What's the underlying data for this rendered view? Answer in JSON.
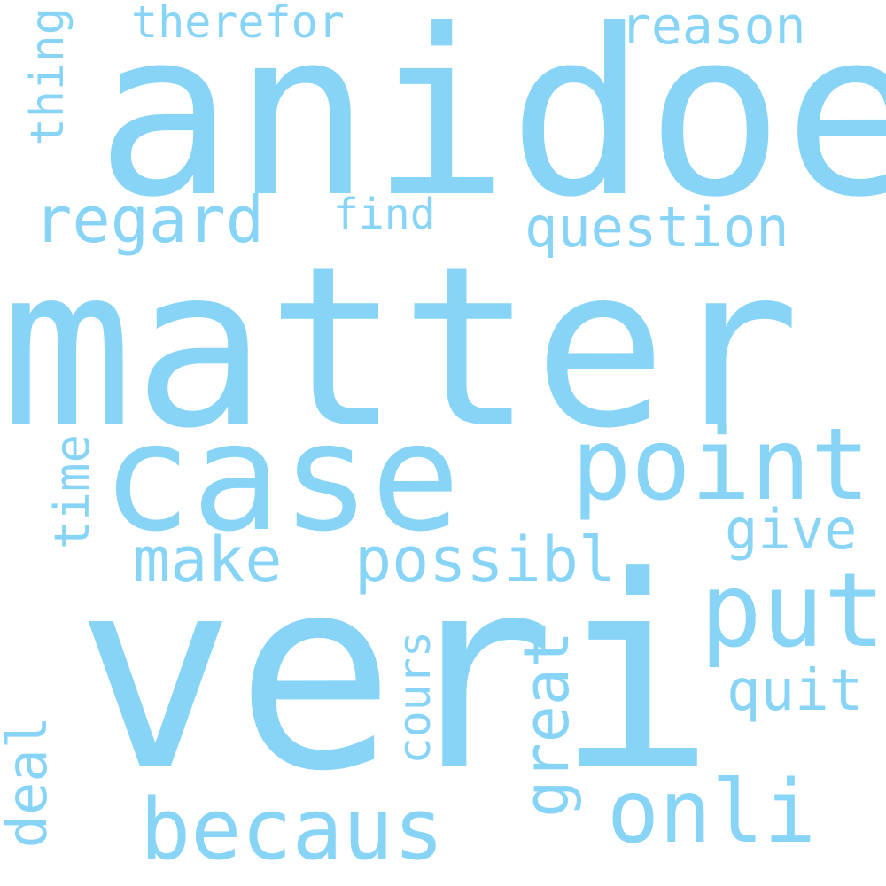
{
  "word_cloud": {
    "color": "#87d4f7",
    "background": "#ffffff",
    "words": {
      "anidoe": "anidoe",
      "matter": "matter",
      "case": "case",
      "veri": "veri",
      "point": "point",
      "put": "put",
      "onli": "onli",
      "becaus": "becaus",
      "regard": "regard",
      "question": "question",
      "reason": "reason",
      "therefor": "therefor",
      "find": "find",
      "make": "make",
      "possibl": "possibl",
      "give": "give",
      "quit": "quit",
      "thing": "thing",
      "time": "time",
      "cours": "cours",
      "great": "great",
      "deal": "deal"
    }
  }
}
